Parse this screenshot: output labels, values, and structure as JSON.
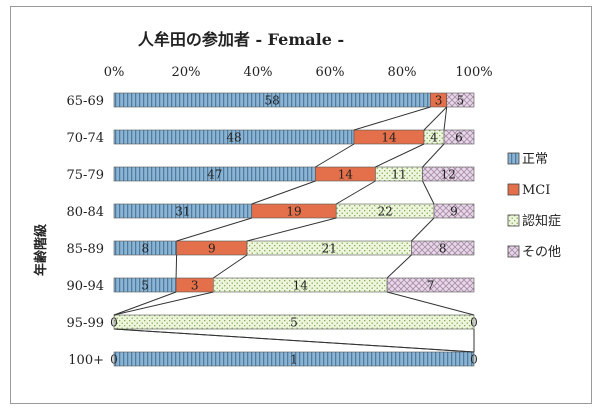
{
  "chart_data": {
    "type": "bar",
    "orientation": "horizontal",
    "stacking": "percent",
    "title": "人牟田の参加者 - Female -",
    "xlabel": "",
    "ylabel": "年齢階級",
    "xlim": [
      0,
      100
    ],
    "x_ticks": [
      "0%",
      "20%",
      "40%",
      "60%",
      "80%",
      "100%"
    ],
    "categories": [
      "65-69",
      "70-74",
      "75-79",
      "80-84",
      "85-89",
      "90-94",
      "95-99",
      "100+"
    ],
    "series": [
      {
        "name": "正常",
        "color": "#8cb4d2",
        "values": [
          58,
          48,
          47,
          31,
          8,
          5,
          0,
          1
        ],
        "labels": [
          "58",
          "48",
          "47",
          "31",
          "8",
          "5",
          "",
          "1"
        ]
      },
      {
        "name": "MCI",
        "color": "#e3704a",
        "values": [
          3,
          14,
          14,
          19,
          9,
          3,
          0,
          0
        ],
        "labels": [
          "3",
          "14",
          "14",
          "19",
          "9",
          "3",
          "",
          ""
        ]
      },
      {
        "name": "認知症",
        "color": "#e9f3d4",
        "values": [
          0,
          4,
          11,
          22,
          21,
          14,
          5,
          0
        ],
        "labels": [
          "",
          "4",
          "11",
          "22",
          "21",
          "14",
          "5",
          ""
        ]
      },
      {
        "name": "その他",
        "color": "#dcc9dc",
        "values": [
          5,
          6,
          12,
          9,
          8,
          7,
          0,
          0
        ],
        "labels": [
          "5",
          "6",
          "12",
          "9",
          "8",
          "7",
          "",
          ""
        ]
      }
    ],
    "end_labels": [
      "",
      "",
      "",
      "",
      "",
      "",
      "0",
      "0"
    ],
    "series_lines": true,
    "legend": "right",
    "grid": false
  }
}
